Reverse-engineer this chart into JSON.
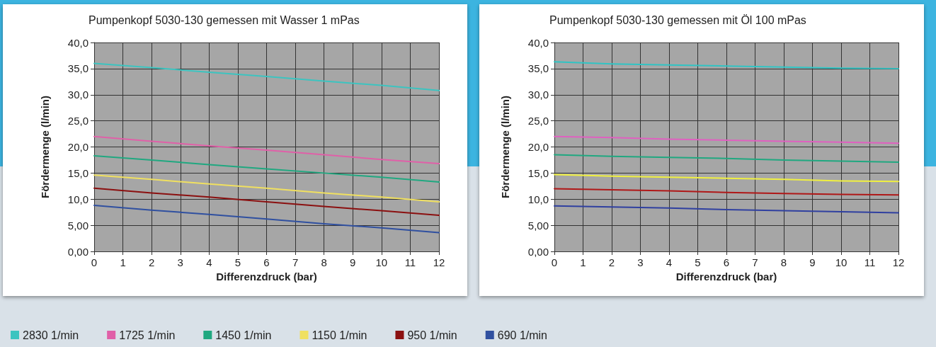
{
  "chart_data": [
    {
      "type": "line",
      "title": "Pumpenkopf 5030-130 gemessen mit Wasser 1 mPas",
      "xlabel": "Differenzdruck (bar)",
      "ylabel": "Fördermenge (l/min)",
      "x": [
        0,
        2,
        4,
        6,
        8,
        10,
        12
      ],
      "xlim": [
        0,
        12
      ],
      "xticks": [
        0,
        1,
        2,
        3,
        4,
        5,
        6,
        7,
        8,
        9,
        10,
        11,
        12
      ],
      "ylim": [
        0,
        40
      ],
      "yticks": [
        {
          "value": 0,
          "label": "0,00"
        },
        {
          "value": 5,
          "label": "5,00"
        },
        {
          "value": 10,
          "label": "10,0"
        },
        {
          "value": 15,
          "label": "15,0"
        },
        {
          "value": 20,
          "label": "20,0"
        },
        {
          "value": 25,
          "label": "25,0"
        },
        {
          "value": 30,
          "label": "30,0"
        },
        {
          "value": 35,
          "label": "35,0"
        },
        {
          "value": 40,
          "label": "40,0"
        }
      ],
      "grid": true,
      "legend": "bottom",
      "marker": "none",
      "line_style": "solid",
      "series": [
        {
          "name": "2830 1/min",
          "color": "#3cc4c0",
          "values": [
            36.0,
            35.2,
            34.3,
            33.5,
            32.6,
            31.8,
            30.8
          ]
        },
        {
          "name": "1725 1/min",
          "color": "#e060a8",
          "values": [
            22.0,
            21.1,
            20.2,
            19.4,
            18.5,
            17.6,
            16.8
          ]
        },
        {
          "name": "1450 1/min",
          "color": "#20a880",
          "values": [
            18.3,
            17.5,
            16.6,
            15.8,
            15.0,
            14.2,
            13.3
          ]
        },
        {
          "name": "1150 1/min",
          "color": "#f0e060",
          "values": [
            14.6,
            13.8,
            12.9,
            12.1,
            11.2,
            10.4,
            9.5
          ]
        },
        {
          "name": "950 1/min",
          "color": "#8b1010",
          "values": [
            12.1,
            11.2,
            10.4,
            9.5,
            8.6,
            7.8,
            6.9
          ]
        },
        {
          "name": "690 1/min",
          "color": "#3050a0",
          "values": [
            8.8,
            7.9,
            7.1,
            6.2,
            5.3,
            4.5,
            3.6
          ]
        }
      ]
    },
    {
      "type": "line",
      "title": "Pumpenkopf 5030-130 gemessen mit Öl 100 mPas",
      "xlabel": "Differenzdruck (bar)",
      "ylabel": "Fördermenge (l/min)",
      "x": [
        0,
        2,
        4,
        6,
        8,
        10,
        12
      ],
      "xlim": [
        0,
        12
      ],
      "xticks": [
        0,
        1,
        2,
        3,
        4,
        5,
        6,
        7,
        8,
        9,
        10,
        11,
        12
      ],
      "ylim": [
        0,
        40
      ],
      "yticks": [
        {
          "value": 0,
          "label": "0,00"
        },
        {
          "value": 5,
          "label": "5,00"
        },
        {
          "value": 10,
          "label": "10,0"
        },
        {
          "value": 15,
          "label": "15,0"
        },
        {
          "value": 20,
          "label": "20,0"
        },
        {
          "value": 25,
          "label": "25,0"
        },
        {
          "value": 30,
          "label": "30,0"
        },
        {
          "value": 35,
          "label": "35,0"
        },
        {
          "value": 40,
          "label": "40,0"
        }
      ],
      "grid": true,
      "marker": "none",
      "line_style": "solid",
      "series": [
        {
          "color": "#30c4c4",
          "values": [
            36.3,
            35.9,
            35.7,
            35.5,
            35.3,
            35.1,
            35.0
          ]
        },
        {
          "color": "#e060c0",
          "values": [
            22.0,
            21.8,
            21.5,
            21.3,
            21.1,
            20.9,
            20.7
          ]
        },
        {
          "color": "#20a880",
          "values": [
            18.5,
            18.2,
            18.0,
            17.8,
            17.5,
            17.3,
            17.1
          ]
        },
        {
          "color": "#f0f040",
          "values": [
            14.7,
            14.4,
            14.2,
            14.0,
            13.8,
            13.5,
            13.4
          ]
        },
        {
          "color": "#b01818",
          "values": [
            12.0,
            11.8,
            11.6,
            11.3,
            11.1,
            10.9,
            10.8
          ]
        },
        {
          "color": "#3040a0",
          "values": [
            8.7,
            8.5,
            8.3,
            8.0,
            7.8,
            7.6,
            7.4
          ]
        }
      ]
    }
  ]
}
